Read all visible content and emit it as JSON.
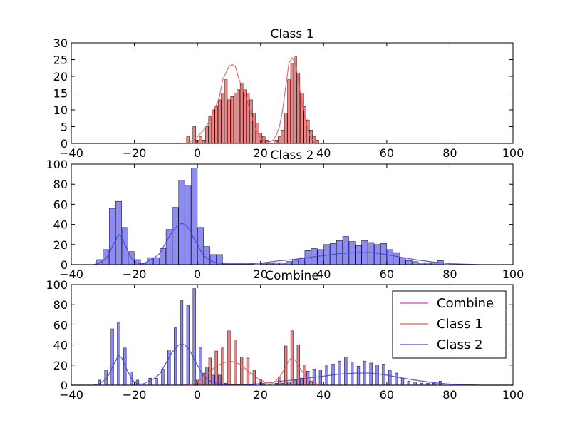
{
  "chart_data": [
    {
      "type": "bar",
      "title": "Class 1",
      "xlim": [
        -40,
        100
      ],
      "ylim": [
        0,
        30
      ],
      "xticks": [
        "−40",
        "−20",
        "0",
        "20",
        "40",
        "60",
        "80",
        "100"
      ],
      "yticks": [
        "0",
        "5",
        "10",
        "15",
        "20",
        "25",
        "30"
      ],
      "bar_width": 0.9,
      "series": [
        {
          "color": "#e85b5b",
          "kind": "hist",
          "x": [
            -3,
            -1,
            0,
            1,
            2,
            3,
            4,
            5,
            6,
            7,
            8,
            9,
            10,
            11,
            12,
            13,
            14,
            15,
            16,
            17,
            18,
            19,
            20,
            21,
            22,
            25,
            26,
            27,
            28,
            29,
            30,
            31,
            32,
            33,
            34,
            35,
            36,
            37,
            38
          ],
          "values": [
            2,
            5,
            1,
            2,
            1,
            5,
            8,
            10,
            11,
            13,
            15,
            19,
            13,
            14,
            15,
            16,
            18,
            16,
            15,
            13,
            9,
            6,
            3,
            2,
            1,
            1,
            2,
            4,
            9,
            19,
            24,
            26,
            21,
            15,
            11,
            7,
            4,
            2,
            1
          ]
        }
      ],
      "curves": [
        {
          "color": "#e85b5b",
          "x": [
            -40,
            -5,
            -3,
            -1,
            0,
            1,
            2,
            3,
            4,
            5,
            6,
            7,
            8,
            9,
            10,
            11,
            12,
            13,
            14,
            15,
            16,
            17,
            18,
            19,
            20,
            21,
            22,
            23,
            24,
            25,
            26,
            27,
            28,
            29,
            30,
            31,
            32,
            33,
            34,
            35,
            36,
            37,
            38,
            39,
            40,
            100
          ],
          "y": [
            0,
            0,
            0.2,
            1,
            2,
            3,
            4,
            5.5,
            7,
            9.5,
            11.5,
            14,
            19,
            21,
            23,
            23.5,
            23,
            19.7,
            17,
            14.5,
            12,
            9,
            5.5,
            3,
            1.5,
            1,
            0.5,
            0.5,
            1,
            2.5,
            5,
            10,
            17,
            24,
            25.5,
            24,
            19,
            13,
            8,
            4,
            1.5,
            0.5,
            0.2,
            0,
            0,
            0
          ]
        }
      ]
    },
    {
      "type": "bar",
      "title": "Class 2",
      "xlim": [
        -40,
        100
      ],
      "ylim": [
        0,
        100
      ],
      "xticks": [
        "−40",
        "−20",
        "0",
        "20",
        "40",
        "60",
        "80",
        "100"
      ],
      "yticks": [
        "0",
        "20",
        "40",
        "60",
        "80",
        "100"
      ],
      "bar_width": 1.9,
      "series": [
        {
          "color": "#6666ee",
          "kind": "hist",
          "x": [
            -31,
            -29,
            -27,
            -25,
            -23,
            -21,
            -19,
            -17,
            -15,
            -13,
            -11,
            -9,
            -7,
            -5,
            -3,
            -1,
            1,
            3,
            5,
            7,
            9,
            11,
            13,
            15,
            17,
            19,
            21,
            23,
            25,
            27,
            29,
            31,
            33,
            35,
            37,
            39,
            41,
            43,
            45,
            47,
            49,
            51,
            53,
            55,
            57,
            59,
            61,
            63,
            65,
            67,
            69,
            71,
            73,
            75,
            77,
            79
          ],
          "values": [
            5,
            15,
            56,
            63,
            37,
            13,
            5,
            1,
            7,
            7,
            16,
            35,
            57,
            84,
            79,
            96,
            37,
            18,
            10,
            10,
            2,
            1,
            1,
            1,
            1,
            0,
            1,
            1,
            2,
            2,
            3,
            5,
            7,
            14,
            16,
            15,
            20,
            21,
            24,
            28,
            23,
            19,
            24,
            22,
            20,
            21,
            15,
            12,
            7,
            4,
            3,
            2,
            2,
            2,
            4,
            0
          ]
        }
      ],
      "curves": [
        {
          "color": "#4444dd",
          "x": [
            -40,
            -33,
            -31,
            -29,
            -28,
            -27,
            -26,
            -25,
            -24,
            -23,
            -22,
            -21,
            -20,
            -19,
            -18,
            -17,
            -16,
            -14,
            -12,
            -10,
            -8,
            -6,
            -5,
            -4,
            -3,
            -2,
            -1,
            0,
            1,
            2,
            4,
            6,
            8,
            10,
            12,
            15,
            20,
            25,
            30,
            35,
            40,
            45,
            50,
            55,
            60,
            65,
            70,
            75,
            80,
            85,
            90,
            100
          ],
          "y": [
            0,
            0,
            1.5,
            6,
            11,
            18,
            24,
            30,
            27,
            20,
            13,
            7,
            3,
            1.5,
            1,
            1.5,
            3,
            6,
            11,
            22,
            33,
            40,
            41,
            40,
            37,
            32,
            25,
            20,
            14,
            9,
            4,
            2,
            1,
            0.5,
            0.3,
            0.5,
            1.5,
            3.5,
            5,
            7,
            9,
            11,
            12,
            12,
            10,
            7,
            4.5,
            2.5,
            1,
            0.5,
            0,
            0
          ]
        }
      ]
    },
    {
      "type": "bar",
      "title": "Combine",
      "xlim": [
        -40,
        100
      ],
      "ylim": [
        0,
        100
      ],
      "xticks": [
        "−40",
        "−20",
        "0",
        "20",
        "40",
        "60",
        "80",
        "100"
      ],
      "yticks": [
        "0",
        "20",
        "40",
        "60",
        "80",
        "100"
      ],
      "bar_width": 0.85,
      "legend_position": "top-right",
      "legend": [
        {
          "label": "Combine",
          "color": "#cc44cc"
        },
        {
          "label": "Class 1",
          "color": "#e85b5b"
        },
        {
          "label": "Class 2",
          "color": "#4444dd"
        }
      ],
      "series": [
        {
          "color": "#6666ee",
          "kind": "hist",
          "x": [
            -31,
            -29,
            -27,
            -25,
            -23,
            -21,
            -19,
            -17,
            -15,
            -13,
            -11,
            -9,
            -7,
            -5,
            -3,
            -1,
            1,
            3,
            5,
            7,
            9,
            11,
            13,
            15,
            17,
            19,
            21,
            23,
            25,
            27,
            29,
            31,
            33,
            35,
            37,
            39,
            41,
            43,
            45,
            47,
            49,
            51,
            53,
            55,
            57,
            59,
            61,
            63,
            65,
            67,
            69,
            71,
            73,
            75,
            77,
            79
          ],
          "values": [
            5,
            15,
            56,
            63,
            37,
            13,
            5,
            1,
            7,
            7,
            16,
            35,
            57,
            84,
            79,
            96,
            37,
            18,
            10,
            10,
            2,
            1,
            1,
            1,
            1,
            0,
            1,
            1,
            2,
            2,
            3,
            5,
            7,
            14,
            16,
            15,
            20,
            21,
            24,
            28,
            23,
            19,
            24,
            22,
            20,
            21,
            15,
            12,
            7,
            4,
            3,
            2,
            2,
            2,
            4,
            0
          ]
        },
        {
          "color": "#e85b5b",
          "kind": "hist",
          "x": [
            0,
            2,
            4,
            6,
            8,
            10,
            12,
            14,
            16,
            18,
            20,
            26,
            28,
            30,
            32,
            34,
            36
          ],
          "values": [
            5,
            12,
            27,
            34,
            37,
            54,
            45,
            28,
            27,
            15,
            6,
            8,
            39,
            54,
            40,
            20,
            4
          ]
        }
      ],
      "curves": [
        {
          "color": "#4444dd",
          "x": [
            -40,
            -33,
            -31,
            -29,
            -28,
            -27,
            -26,
            -25,
            -24,
            -23,
            -22,
            -21,
            -20,
            -19,
            -18,
            -17,
            -16,
            -14,
            -12,
            -10,
            -8,
            -6,
            -5,
            -4,
            -3,
            -2,
            -1,
            0,
            1,
            2,
            4,
            6,
            8,
            10,
            12,
            15,
            20,
            25,
            30,
            35,
            40,
            45,
            50,
            55,
            60,
            65,
            70,
            75,
            80,
            85,
            90,
            100
          ],
          "y": [
            0,
            0,
            1.5,
            6,
            11,
            18,
            24,
            30,
            27,
            20,
            13,
            7,
            3,
            1.5,
            1,
            1.5,
            3,
            6,
            11,
            22,
            33,
            40,
            41,
            40,
            37,
            32,
            25,
            20,
            14,
            9,
            4,
            2,
            1,
            0.5,
            0.3,
            0.5,
            1.5,
            3.5,
            5,
            7,
            9,
            11,
            12,
            12,
            10,
            7,
            4.5,
            2.5,
            1,
            0.5,
            0,
            0
          ]
        },
        {
          "color": "#e85b5b",
          "x": [
            -40,
            -5,
            -2,
            0,
            2,
            4,
            6,
            8,
            10,
            12,
            14,
            16,
            18,
            20,
            22,
            24,
            26,
            28,
            29,
            30,
            31,
            32,
            34,
            36,
            38,
            40,
            100
          ],
          "y": [
            0,
            0,
            1,
            3,
            8,
            14,
            19,
            22,
            24,
            23,
            20,
            14,
            9,
            5,
            2.5,
            2,
            8,
            18,
            25,
            27,
            25,
            19,
            10,
            4,
            1,
            0,
            0
          ]
        }
      ]
    }
  ]
}
